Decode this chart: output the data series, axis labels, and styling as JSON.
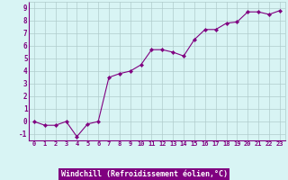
{
  "x": [
    0,
    1,
    2,
    3,
    4,
    5,
    6,
    7,
    8,
    9,
    10,
    11,
    12,
    13,
    14,
    15,
    16,
    17,
    18,
    19,
    20,
    21,
    22,
    23
  ],
  "y": [
    0.0,
    -0.3,
    -0.3,
    0.0,
    -1.2,
    -0.2,
    0.0,
    3.5,
    3.8,
    4.0,
    4.5,
    5.7,
    5.7,
    5.5,
    5.2,
    6.5,
    7.3,
    7.3,
    7.8,
    7.9,
    8.7,
    8.7,
    8.5,
    8.8
  ],
  "line_color": "#800080",
  "marker": "D",
  "marker_size": 2.2,
  "background_color": "#d8f4f4",
  "grid_color": "#b0cccc",
  "xlabel": "Windchill (Refroidissement éolien,°C)",
  "ylim": [
    -1.5,
    9.5
  ],
  "xlim": [
    -0.5,
    23.5
  ],
  "tick_color": "#800080",
  "xlabel_color": "#ffffff",
  "xlabel_bg": "#800080",
  "yticks": [
    -1,
    0,
    1,
    2,
    3,
    4,
    5,
    6,
    7,
    8,
    9
  ],
  "ytick_labels": [
    "-1",
    "0",
    "1",
    "2",
    "3",
    "4",
    "5",
    "6",
    "7",
    "8",
    "9"
  ]
}
